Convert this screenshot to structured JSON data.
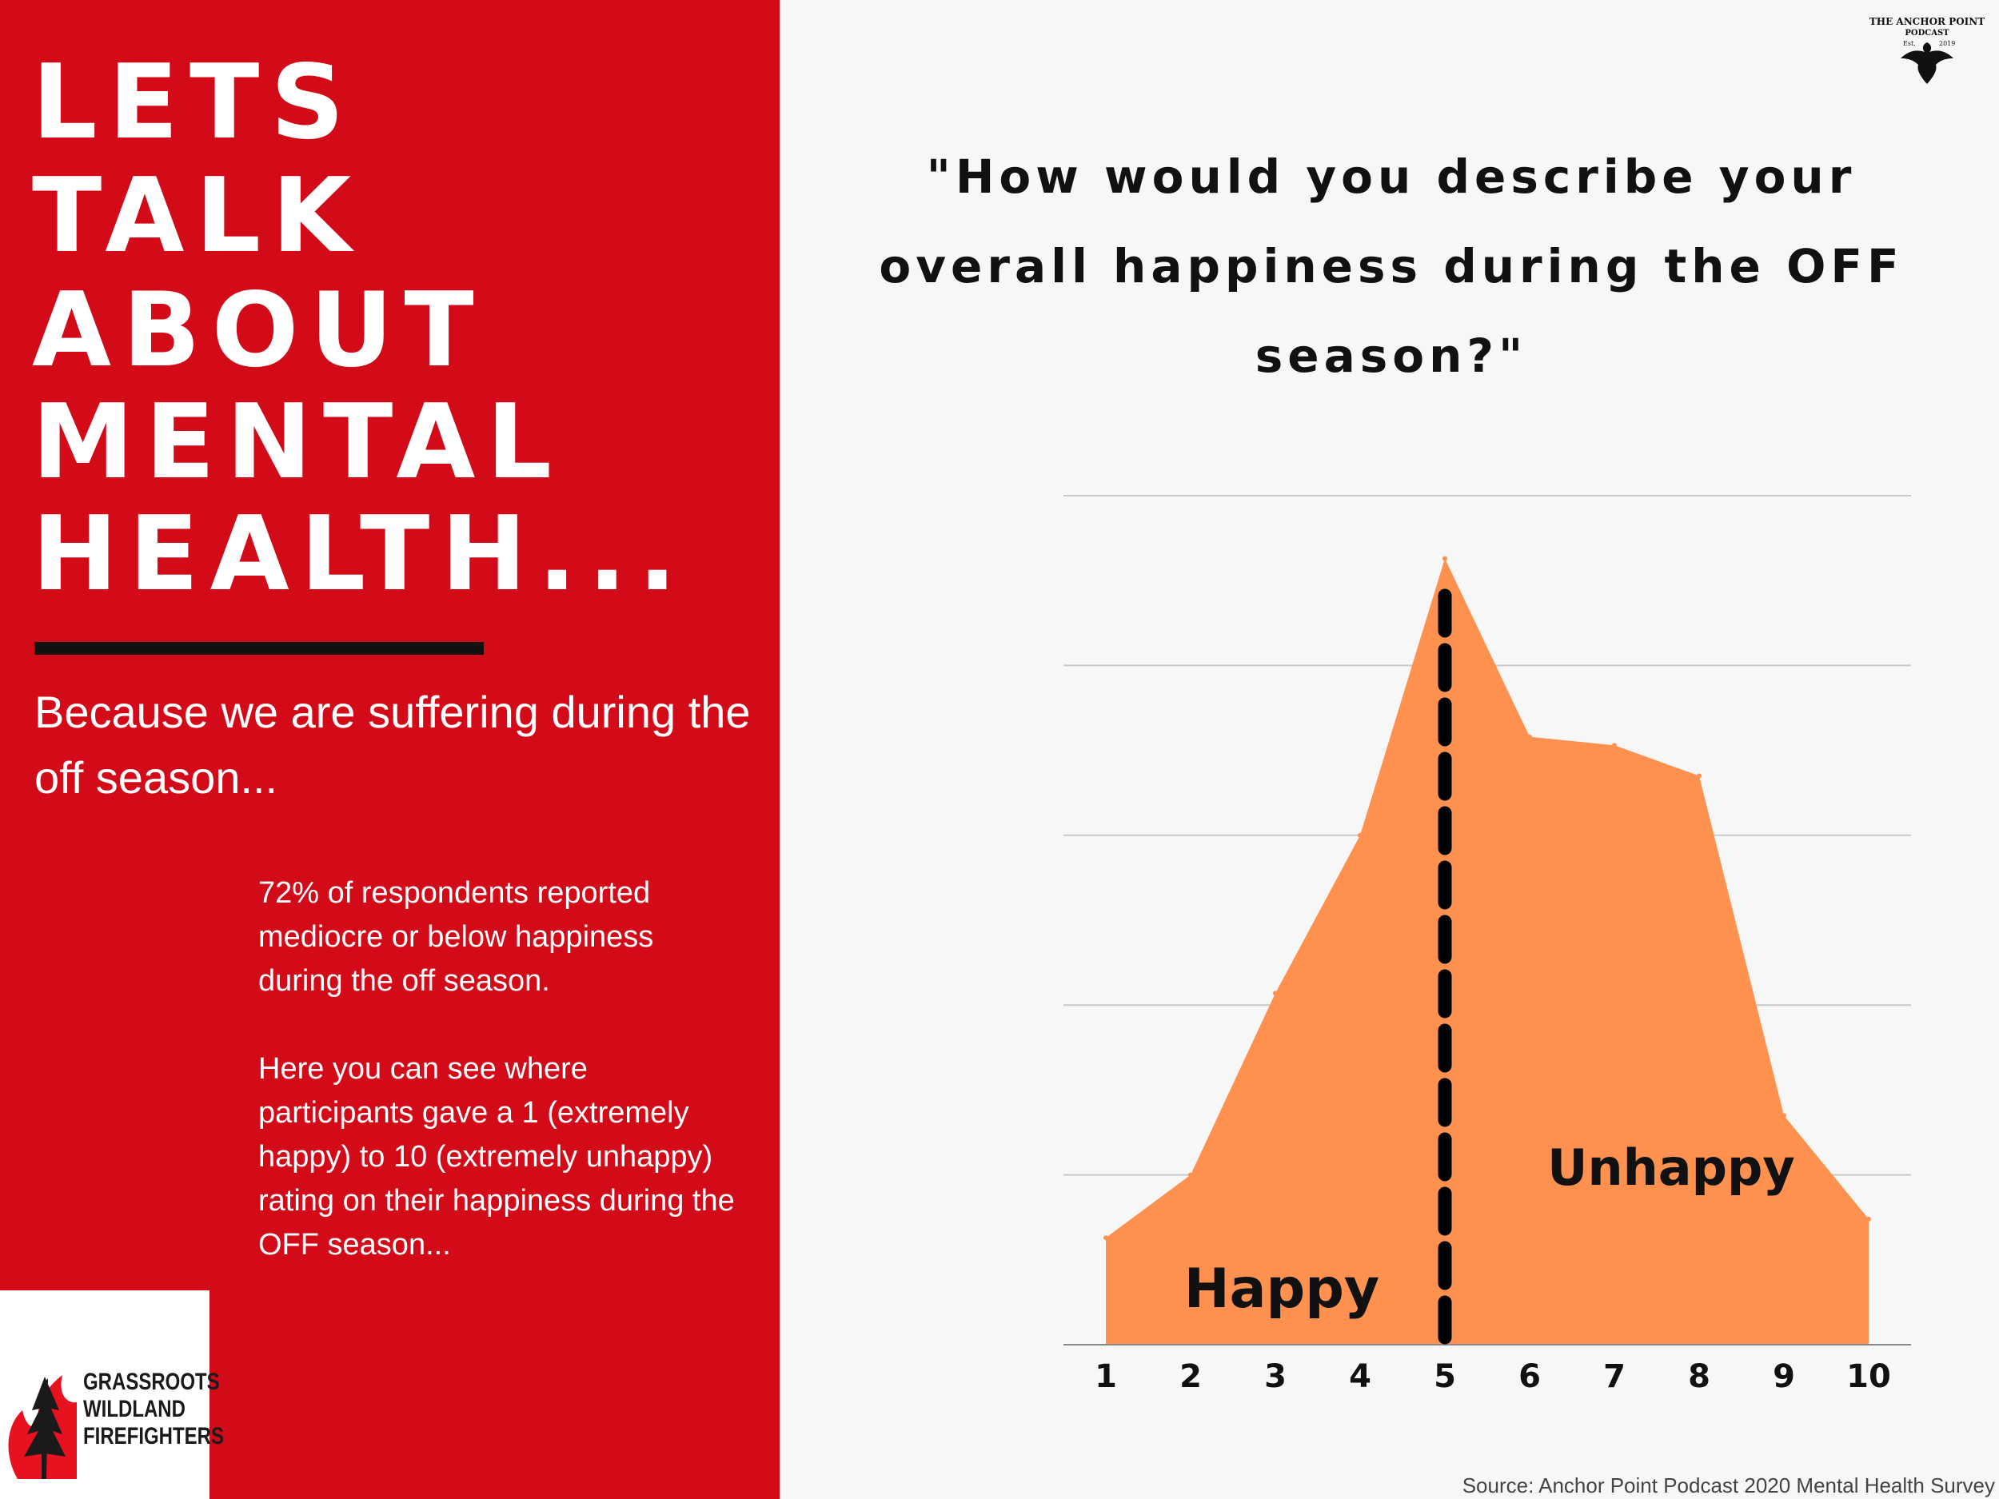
{
  "headline": {
    "lines": [
      "LETS",
      "TALK",
      "ABOUT",
      "MENTAL",
      "HEALTH..."
    ]
  },
  "subhead": "Because we are suffering during the off season...",
  "paragraphs": [
    "72% of respondents reported mediocre or below happiness during the off season.",
    "Here you can see where participants gave a 1 (extremely happy) to 10 (extremely unhappy) rating on their happiness during the OFF season..."
  ],
  "org_logo": {
    "text_lines": [
      "GRASSROOTS",
      "WILDLAND",
      "FIREFIGHTERS"
    ],
    "icon": "flame-tree-icon"
  },
  "podcast_logo": {
    "line1": "THE ANCHOR POINT",
    "line2": "PODCAST",
    "est": "Est.",
    "year": "2019",
    "icon": "eagle-icon"
  },
  "source": "Source: Anchor Point Podcast 2020 Mental Health Survey",
  "colors": {
    "panel_red": "#d30a18",
    "area_fill": "#fe914f",
    "background": "#f7f7f7",
    "text_dark": "#111111"
  },
  "chart_data": {
    "type": "area",
    "title": "\"How would you describe your overall happiness during the OFF season?\"",
    "x": [
      1,
      2,
      3,
      4,
      5,
      6,
      7,
      8,
      9,
      10
    ],
    "x_tick_labels": [
      "1",
      "2",
      "3",
      "4",
      "5",
      "6",
      "7",
      "8",
      "9",
      "10"
    ],
    "values": [
      0.63,
      1.0,
      2.07,
      3.0,
      4.63,
      3.58,
      3.53,
      3.35,
      1.35,
      0.74
    ],
    "ylim": [
      0,
      5
    ],
    "y_ticks_shown": false,
    "grid": true,
    "annotations": [
      "Happy",
      "Unhappy"
    ],
    "divider_x": 5
  }
}
